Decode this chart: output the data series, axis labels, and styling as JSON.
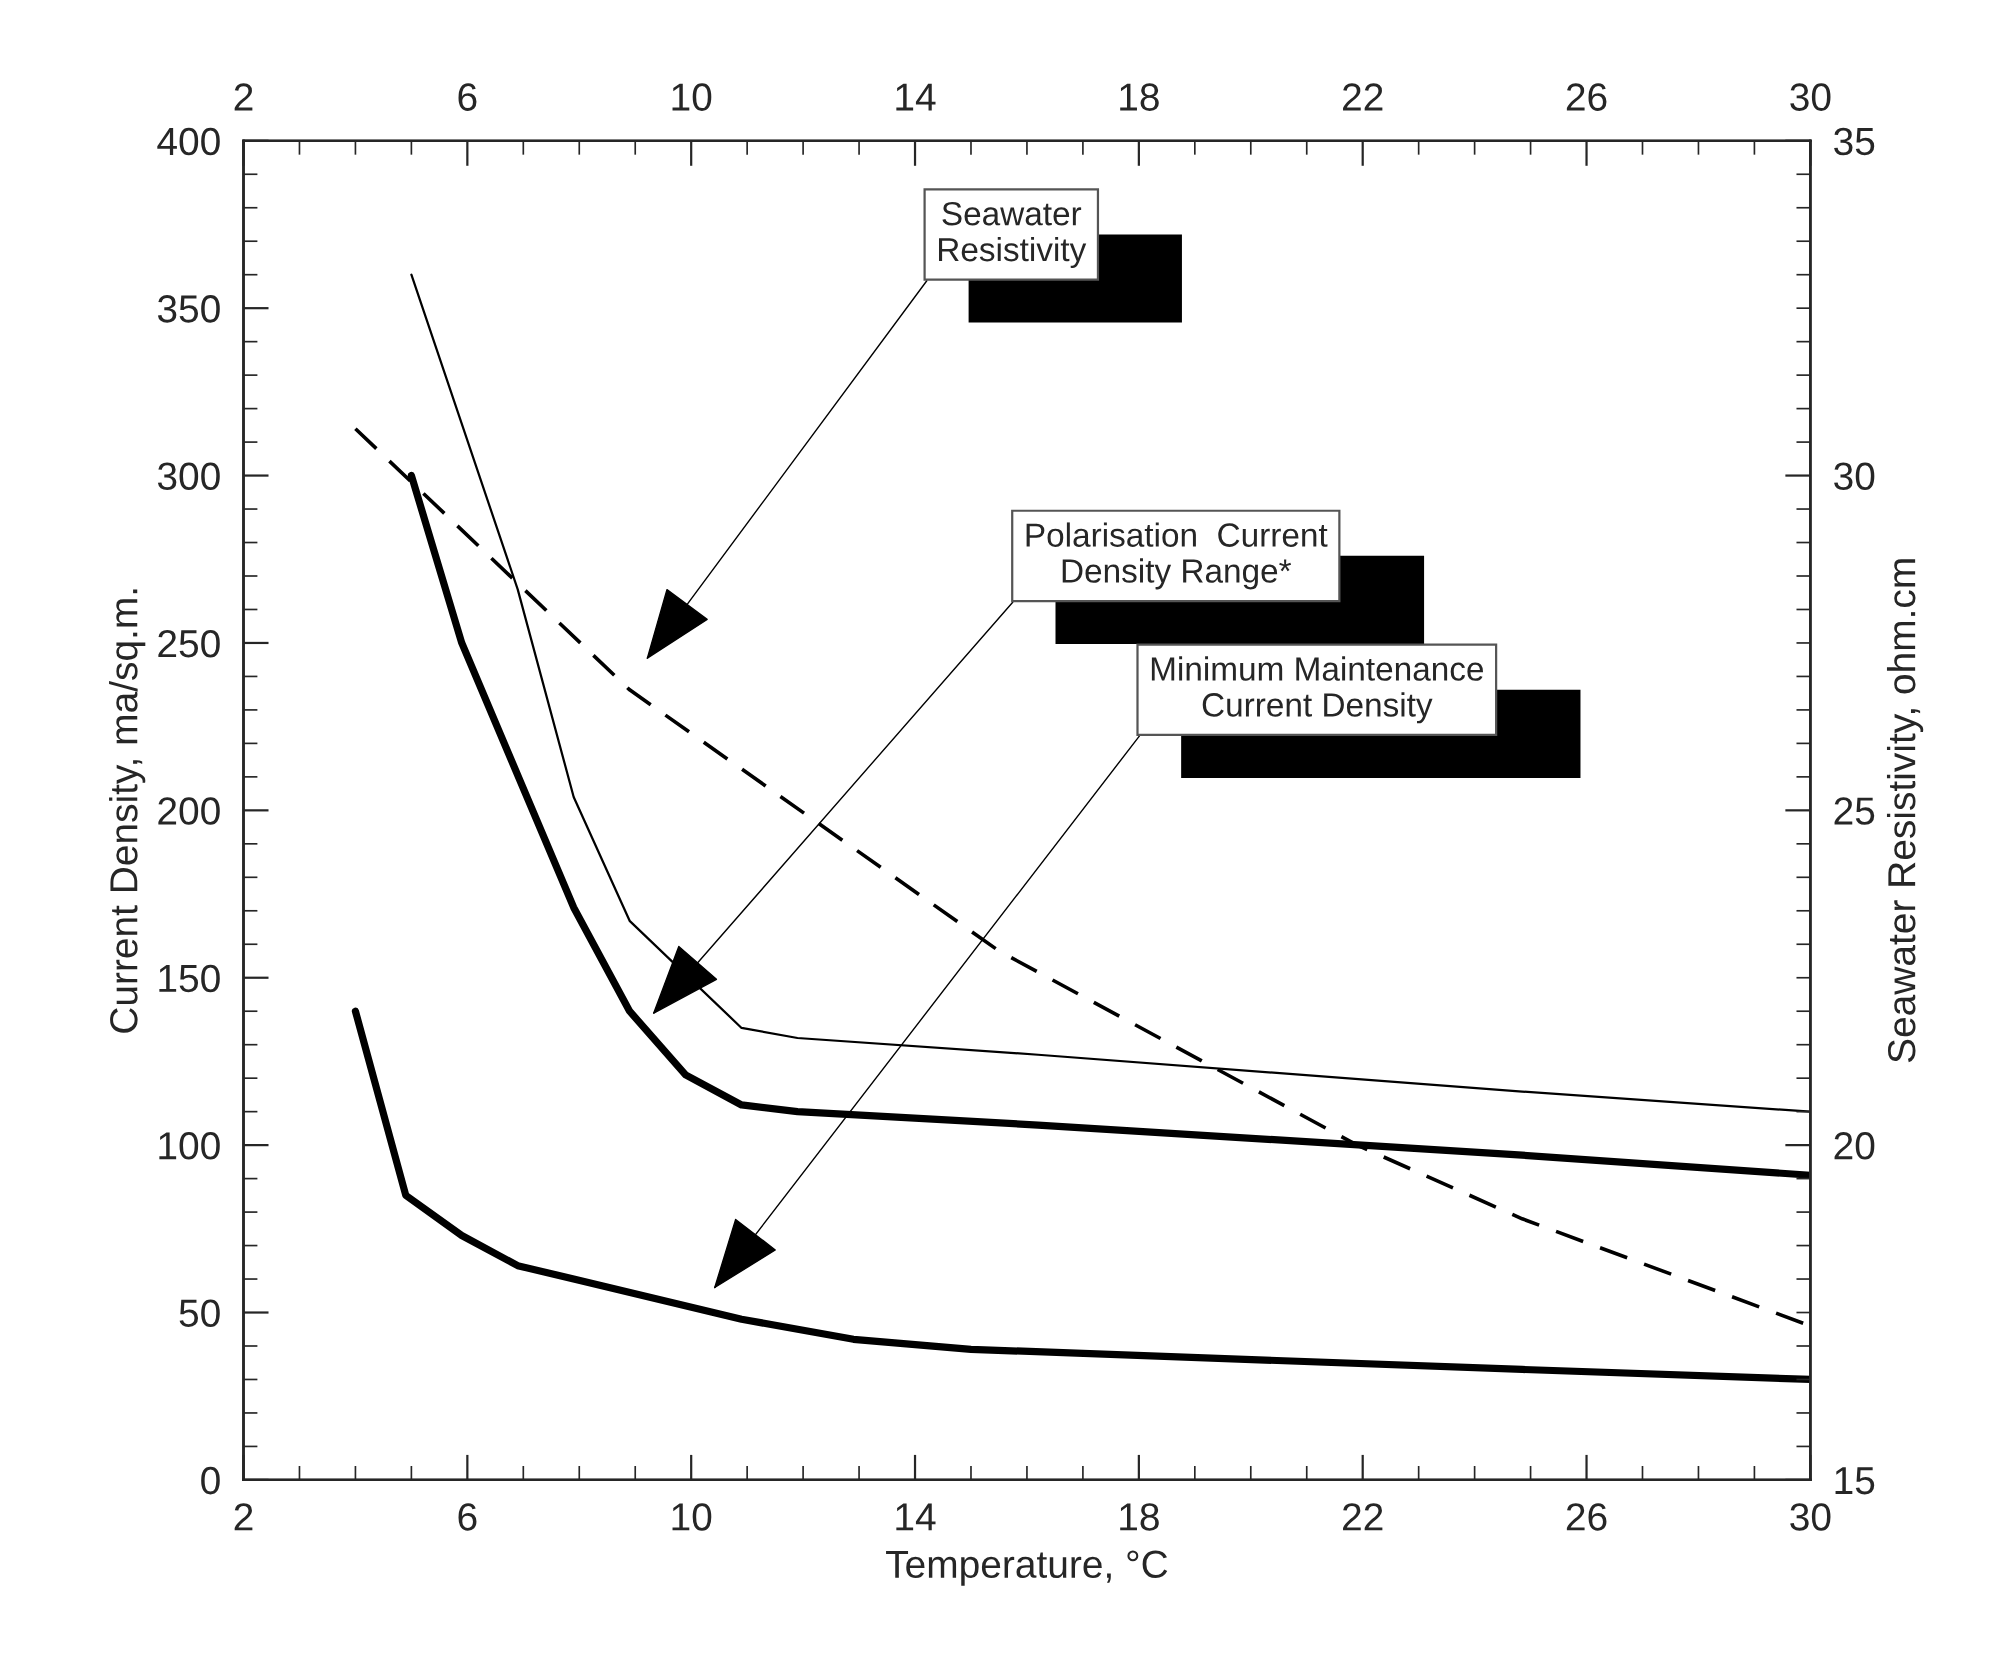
{
  "chart_data": {
    "type": "line",
    "xlabel": "Temperature, °C",
    "ylabel": "Current Density, ma/sq.m.",
    "y2label": "Seawater Resistivity, ohm.cm",
    "series": [
      {
        "color": "#000000",
        "line_style": "solid",
        "x": [
          4,
          4.9,
          5.9,
          6.9,
          7.9,
          10.9,
          12.9,
          15,
          24.85,
          30
        ],
        "values": [
          140,
          85,
          73,
          64,
          60,
          48,
          42,
          39,
          33,
          30
        ]
      },
      {
        "color": "#000000",
        "line_style": "solid",
        "x": [
          5,
          5.9,
          7.9,
          8.9,
          9.9,
          10.9,
          11.9,
          16.2,
          24.85,
          30
        ],
        "values": [
          300,
          250,
          171,
          140,
          121,
          112,
          110,
          106,
          97,
          91
        ]
      },
      {
        "color": "#000000",
        "line_style": "solid",
        "x": [
          5,
          6.9,
          7.9,
          8.9,
          10.9,
          11.9,
          16.2,
          24.85,
          30
        ],
        "values": [
          360,
          266,
          204,
          167,
          135,
          132,
          127,
          116,
          110
        ]
      },
      {
        "color": "#000000",
        "line_style": "dashed",
        "axis": "y2",
        "x": [
          4,
          8.9,
          15.5,
          21.9,
          24.85,
          30
        ],
        "values": [
          30.7,
          26.8,
          22.9,
          20.0,
          18.9,
          17.3
        ]
      }
    ],
    "annotations": [
      "Seawater\nResistivity",
      "Polarisation  Current\nDensity Range*",
      "Minimum Maintenance\nCurrent Density"
    ],
    "xlim": [
      2,
      30
    ],
    "xticks": [
      2,
      {
        "value": 3,
        "label": null
      },
      {
        "value": 4,
        "label": null
      },
      {
        "value": 5,
        "label": null
      },
      6,
      {
        "value": 7,
        "label": null
      },
      {
        "value": 8,
        "label": null
      },
      {
        "value": 9,
        "label": null
      },
      10,
      {
        "value": 11,
        "label": null
      },
      {
        "value": 12,
        "label": null
      },
      {
        "value": 13,
        "label": null
      },
      14,
      {
        "value": 15,
        "label": null
      },
      {
        "value": 16,
        "label": null
      },
      {
        "value": 17,
        "label": null
      },
      18,
      {
        "value": 19,
        "label": null
      },
      {
        "value": 20,
        "label": null
      },
      {
        "value": 21,
        "label": null
      },
      22,
      {
        "value": 23,
        "label": null
      },
      {
        "value": 24,
        "label": null
      },
      {
        "value": 25,
        "label": null
      },
      26,
      {
        "value": 27,
        "label": null
      },
      {
        "value": 28,
        "label": null
      },
      {
        "value": 29,
        "label": null
      },
      30
    ],
    "x2lim": [
      2,
      30
    ],
    "x2ticks": [
      2,
      {
        "value": 3,
        "label": null
      },
      {
        "value": 4,
        "label": null
      },
      {
        "value": 5,
        "label": null
      },
      6,
      {
        "value": 7,
        "label": null
      },
      {
        "value": 8,
        "label": null
      },
      {
        "value": 9,
        "label": null
      },
      10,
      {
        "value": 11,
        "label": null
      },
      {
        "value": 12,
        "label": null
      },
      {
        "value": 13,
        "label": null
      },
      14,
      {
        "value": 15,
        "label": null
      },
      {
        "value": 16,
        "label": null
      },
      {
        "value": 17,
        "label": null
      },
      18,
      {
        "value": 19,
        "label": null
      },
      {
        "value": 20,
        "label": null
      },
      {
        "value": 21,
        "label": null
      },
      22,
      {
        "value": 23,
        "label": null
      },
      {
        "value": 24,
        "label": null
      },
      {
        "value": 25,
        "label": null
      },
      26,
      {
        "value": 27,
        "label": null
      },
      {
        "value": 28,
        "label": null
      },
      {
        "value": 29,
        "label": null
      },
      30
    ],
    "ylim": [
      0,
      400
    ],
    "yticks": [
      0,
      {
        "value": 10,
        "label": null
      },
      {
        "value": 20,
        "label": null
      },
      {
        "value": 30,
        "label": null
      },
      {
        "value": 40,
        "label": null
      },
      50,
      {
        "value": 60,
        "label": null
      },
      {
        "value": 70,
        "label": null
      },
      {
        "value": 80,
        "label": null
      },
      {
        "value": 90,
        "label": null
      },
      100,
      {
        "value": 110,
        "label": null
      },
      {
        "value": 120,
        "label": null
      },
      {
        "value": 130,
        "label": null
      },
      {
        "value": 140,
        "label": null
      },
      150,
      {
        "value": 160,
        "label": null
      },
      {
        "value": 170,
        "label": null
      },
      {
        "value": 180,
        "label": null
      },
      {
        "value": 190,
        "label": null
      },
      200,
      {
        "value": 210,
        "label": null
      },
      {
        "value": 220,
        "label": null
      },
      {
        "value": 230,
        "label": null
      },
      {
        "value": 240,
        "label": null
      },
      250,
      {
        "value": 260,
        "label": null
      },
      {
        "value": 270,
        "label": null
      },
      {
        "value": 280,
        "label": null
      },
      {
        "value": 290,
        "label": null
      },
      300,
      {
        "value": 310,
        "label": null
      },
      {
        "value": 320,
        "label": null
      },
      {
        "value": 330,
        "label": null
      },
      {
        "value": 340,
        "label": null
      },
      350,
      {
        "value": 360,
        "label": null
      },
      {
        "value": 370,
        "label": null
      },
      {
        "value": 380,
        "label": null
      },
      {
        "value": 390,
        "label": null
      },
      400
    ],
    "y2lim": [
      15,
      35
    ],
    "y2ticks": [
      15,
      {
        "value": 15.5,
        "label": null
      },
      {
        "value": 16,
        "label": null
      },
      {
        "value": 16.5,
        "label": null
      },
      {
        "value": 17,
        "label": null
      },
      {
        "value": 17.5,
        "label": null
      },
      {
        "value": 18,
        "label": null
      },
      {
        "value": 18.5,
        "label": null
      },
      {
        "value": 19,
        "label": null
      },
      {
        "value": 19.5,
        "label": null
      },
      20,
      {
        "value": 20.5,
        "label": null
      },
      {
        "value": 21,
        "label": null
      },
      {
        "value": 21.5,
        "label": null
      },
      {
        "value": 22,
        "label": null
      },
      {
        "value": 22.5,
        "label": null
      },
      {
        "value": 23,
        "label": null
      },
      {
        "value": 23.5,
        "label": null
      },
      {
        "value": 24,
        "label": null
      },
      {
        "value": 24.5,
        "label": null
      },
      25,
      {
        "value": 25.5,
        "label": null
      },
      {
        "value": 26,
        "label": null
      },
      {
        "value": 26.5,
        "label": null
      },
      {
        "value": 27,
        "label": null
      },
      {
        "value": 27.5,
        "label": null
      },
      {
        "value": 28,
        "label": null
      },
      {
        "value": 28.5,
        "label": null
      },
      {
        "value": 29,
        "label": null
      },
      {
        "value": 29.5,
        "label": null
      },
      30,
      {
        "value": 30.5,
        "label": null
      },
      {
        "value": 31,
        "label": null
      },
      {
        "value": 31.5,
        "label": null
      },
      {
        "value": 32,
        "label": null
      },
      {
        "value": 32.5,
        "label": null
      },
      {
        "value": 33,
        "label": null
      },
      {
        "value": 33.5,
        "label": null
      },
      {
        "value": 34,
        "label": null
      },
      {
        "value": 34.5,
        "label": null
      },
      35
    ],
    "grid": false,
    "legend": false,
    "marker": "none"
  }
}
